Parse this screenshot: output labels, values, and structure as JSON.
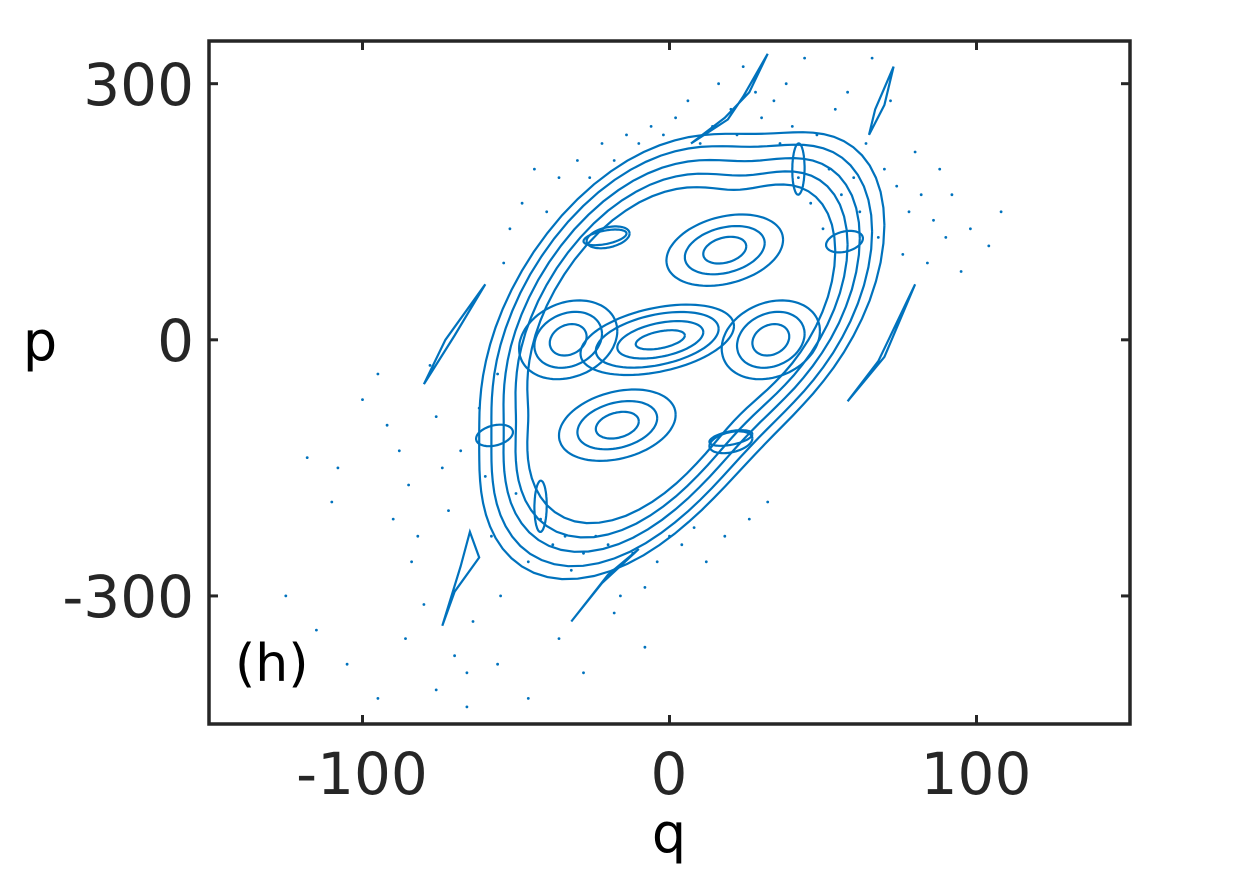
{
  "chart_data": {
    "type": "scatter",
    "title": "",
    "panel_label": "(h)",
    "xlabel": "q",
    "ylabel": "p",
    "xlim": [
      -150,
      150
    ],
    "ylim": [
      -450,
      350
    ],
    "xticks": [
      -100,
      0,
      100
    ],
    "yticks": [
      -300,
      0,
      300
    ],
    "xtick_labels": [
      "-100",
      "0",
      "100"
    ],
    "ytick_labels": [
      "-300",
      "0",
      "300"
    ],
    "grid": false,
    "legend": "none",
    "color": "#0072BD",
    "orbits": [
      {
        "name": "central-island-1",
        "cx": -3,
        "cy": 0,
        "rx": 8,
        "ry": 10
      },
      {
        "name": "central-island-2",
        "cx": -3,
        "cy": 0,
        "rx": 14,
        "ry": 20
      },
      {
        "name": "central-island-3",
        "cx": -4,
        "cy": 0,
        "rx": 20,
        "ry": 30
      },
      {
        "name": "central-island-4",
        "cx": -4,
        "cy": 0,
        "rx": 25,
        "ry": 38
      },
      {
        "name": "island-upper-1",
        "cx": 18,
        "cy": 105,
        "rx": 7,
        "ry": 15
      },
      {
        "name": "island-upper-2",
        "cx": 18,
        "cy": 105,
        "rx": 13,
        "ry": 27
      },
      {
        "name": "island-upper-3",
        "cx": 18,
        "cy": 105,
        "rx": 19,
        "ry": 40
      },
      {
        "name": "island-lower-1",
        "cx": -17,
        "cy": -100,
        "rx": 7,
        "ry": 15
      },
      {
        "name": "island-lower-2",
        "cx": -17,
        "cy": -100,
        "rx": 13,
        "ry": 27
      },
      {
        "name": "island-lower-3",
        "cx": -17,
        "cy": -100,
        "rx": 19,
        "ry": 40
      },
      {
        "name": "island-left-1",
        "cx": -33,
        "cy": 0,
        "rx": 6,
        "ry": 18
      },
      {
        "name": "island-left-2",
        "cx": -33,
        "cy": 0,
        "rx": 11,
        "ry": 32
      },
      {
        "name": "island-left-3",
        "cx": -33,
        "cy": 0,
        "rx": 16,
        "ry": 45
      },
      {
        "name": "island-right-1",
        "cx": 33,
        "cy": 0,
        "rx": 6,
        "ry": 18
      },
      {
        "name": "island-right-2",
        "cx": 33,
        "cy": 0,
        "rx": 11,
        "ry": 32
      },
      {
        "name": "island-right-3",
        "cx": 33,
        "cy": 0,
        "rx": 16,
        "ry": 45
      },
      {
        "name": "outer-ring-1",
        "cx": 0,
        "cy": 0,
        "rx": 50,
        "ry": 170
      },
      {
        "name": "outer-ring-2",
        "cx": 0,
        "cy": 0,
        "rx": 54,
        "ry": 185
      },
      {
        "name": "outer-ring-3",
        "cx": 0,
        "cy": 0,
        "rx": 58,
        "ry": 200
      },
      {
        "name": "outer-ring-4",
        "cx": 0,
        "cy": 0,
        "rx": 62,
        "ry": 215
      },
      {
        "name": "outer-ring-5",
        "cx": 0,
        "cy": 0,
        "rx": 66,
        "ry": 228
      },
      {
        "name": "satellite-1",
        "cx": -20,
        "cy": 120,
        "rx": 7,
        "ry": 12
      },
      {
        "name": "satellite-2",
        "cx": 20,
        "cy": -120,
        "rx": 7,
        "ry": 12
      },
      {
        "name": "satellite-3",
        "cx": 42,
        "cy": 200,
        "rx": 2,
        "ry": 30
      },
      {
        "name": "satellite-4",
        "cx": -42,
        "cy": -195,
        "rx": 2,
        "ry": 30
      },
      {
        "name": "satellite-5",
        "cx": 57,
        "cy": 115,
        "rx": 6,
        "ry": 12
      },
      {
        "name": "satellite-6",
        "cx": -57,
        "cy": -112,
        "rx": 6,
        "ry": 12
      },
      {
        "name": "satellite-7",
        "cx": 20,
        "cy": -115,
        "rx": 7,
        "ry": 8
      },
      {
        "name": "satellite-8",
        "cx": -21,
        "cy": 120,
        "rx": 7,
        "ry": 8
      }
    ],
    "filaments": [
      {
        "name": "filament-upper-left",
        "points": [
          [
            7,
            230
          ],
          [
            18,
            260
          ],
          [
            26,
            290
          ],
          [
            32,
            335
          ],
          [
            24,
            285
          ],
          [
            19,
            258
          ]
        ]
      },
      {
        "name": "filament-upper-right",
        "points": [
          [
            65,
            240
          ],
          [
            70,
            275
          ],
          [
            73,
            320
          ],
          [
            67,
            270
          ]
        ]
      },
      {
        "name": "filament-right",
        "points": [
          [
            58,
            -72
          ],
          [
            68,
            -25
          ],
          [
            80,
            65
          ],
          [
            70,
            -20
          ]
        ]
      },
      {
        "name": "filament-left",
        "points": [
          [
            -80,
            -52
          ],
          [
            -70,
            5
          ],
          [
            -60,
            65
          ],
          [
            -73,
            0
          ]
        ]
      },
      {
        "name": "filament-lower-left",
        "points": [
          [
            -74,
            -335
          ],
          [
            -68,
            -265
          ],
          [
            -65,
            -225
          ],
          [
            -62,
            -255
          ],
          [
            -70,
            -295
          ]
        ]
      },
      {
        "name": "filament-lower-right",
        "points": [
          [
            -32,
            -330
          ],
          [
            -20,
            -275
          ],
          [
            -10,
            -245
          ],
          [
            -22,
            -285
          ]
        ]
      }
    ],
    "scatter_points": [
      [
        -110,
        -190
      ],
      [
        -118,
        -138
      ],
      [
        -108,
        -150
      ],
      [
        -100,
        -70
      ],
      [
        -95,
        -40
      ],
      [
        -92,
        -100
      ],
      [
        -90,
        -210
      ],
      [
        -88,
        -130
      ],
      [
        -85,
        -170
      ],
      [
        -84,
        -260
      ],
      [
        -82,
        -230
      ],
      [
        -80,
        -310
      ],
      [
        -78,
        -30
      ],
      [
        -76,
        -90
      ],
      [
        -74,
        -150
      ],
      [
        -72,
        -200
      ],
      [
        -70,
        -370
      ],
      [
        -68,
        -130
      ],
      [
        -66,
        -390
      ],
      [
        -64,
        -330
      ],
      [
        -62,
        -80
      ],
      [
        -60,
        -160
      ],
      [
        -58,
        -230
      ],
      [
        -56,
        -40
      ],
      [
        -55,
        -300
      ],
      [
        -54,
        90
      ],
      [
        -52,
        130
      ],
      [
        -50,
        -180
      ],
      [
        -48,
        160
      ],
      [
        -46,
        -260
      ],
      [
        -44,
        200
      ],
      [
        -42,
        -210
      ],
      [
        -40,
        150
      ],
      [
        -38,
        -240
      ],
      [
        -36,
        190
      ],
      [
        -34,
        -230
      ],
      [
        -32,
        -270
      ],
      [
        -30,
        210
      ],
      [
        -28,
        -250
      ],
      [
        -26,
        190
      ],
      [
        -24,
        -230
      ],
      [
        -22,
        230
      ],
      [
        -20,
        -240
      ],
      [
        -18,
        210
      ],
      [
        -16,
        -300
      ],
      [
        -14,
        240
      ],
      [
        -12,
        -250
      ],
      [
        -10,
        230
      ],
      [
        -8,
        -360
      ],
      [
        -6,
        250
      ],
      [
        -4,
        -260
      ],
      [
        -2,
        240
      ],
      [
        0,
        -230
      ],
      [
        2,
        260
      ],
      [
        4,
        -240
      ],
      [
        6,
        280
      ],
      [
        8,
        -220
      ],
      [
        10,
        230
      ],
      [
        12,
        -260
      ],
      [
        14,
        250
      ],
      [
        16,
        300
      ],
      [
        18,
        -230
      ],
      [
        20,
        270
      ],
      [
        22,
        240
      ],
      [
        24,
        320
      ],
      [
        26,
        -210
      ],
      [
        28,
        290
      ],
      [
        30,
        260
      ],
      [
        32,
        -190
      ],
      [
        34,
        280
      ],
      [
        36,
        230
      ],
      [
        38,
        300
      ],
      [
        40,
        250
      ],
      [
        42,
        190
      ],
      [
        44,
        330
      ],
      [
        46,
        160
      ],
      [
        48,
        240
      ],
      [
        50,
        130
      ],
      [
        52,
        200
      ],
      [
        54,
        270
      ],
      [
        56,
        170
      ],
      [
        58,
        290
      ],
      [
        60,
        190
      ],
      [
        62,
        150
      ],
      [
        64,
        230
      ],
      [
        66,
        330
      ],
      [
        68,
        120
      ],
      [
        70,
        200
      ],
      [
        72,
        280
      ],
      [
        74,
        180
      ],
      [
        76,
        100
      ],
      [
        78,
        150
      ],
      [
        80,
        220
      ],
      [
        82,
        170
      ],
      [
        84,
        90
      ],
      [
        86,
        140
      ],
      [
        88,
        200
      ],
      [
        90,
        120
      ],
      [
        92,
        170
      ],
      [
        95,
        80
      ],
      [
        98,
        130
      ],
      [
        104,
        110
      ],
      [
        108,
        150
      ],
      [
        -125,
        -300
      ],
      [
        -115,
        -340
      ],
      [
        -105,
        -380
      ],
      [
        -95,
        -420
      ],
      [
        -86,
        -350
      ],
      [
        -76,
        -410
      ],
      [
        -66,
        -430
      ],
      [
        -56,
        -380
      ],
      [
        -46,
        -420
      ],
      [
        -36,
        -350
      ],
      [
        -28,
        -390
      ],
      [
        -18,
        -320
      ],
      [
        -8,
        -290
      ]
    ]
  }
}
